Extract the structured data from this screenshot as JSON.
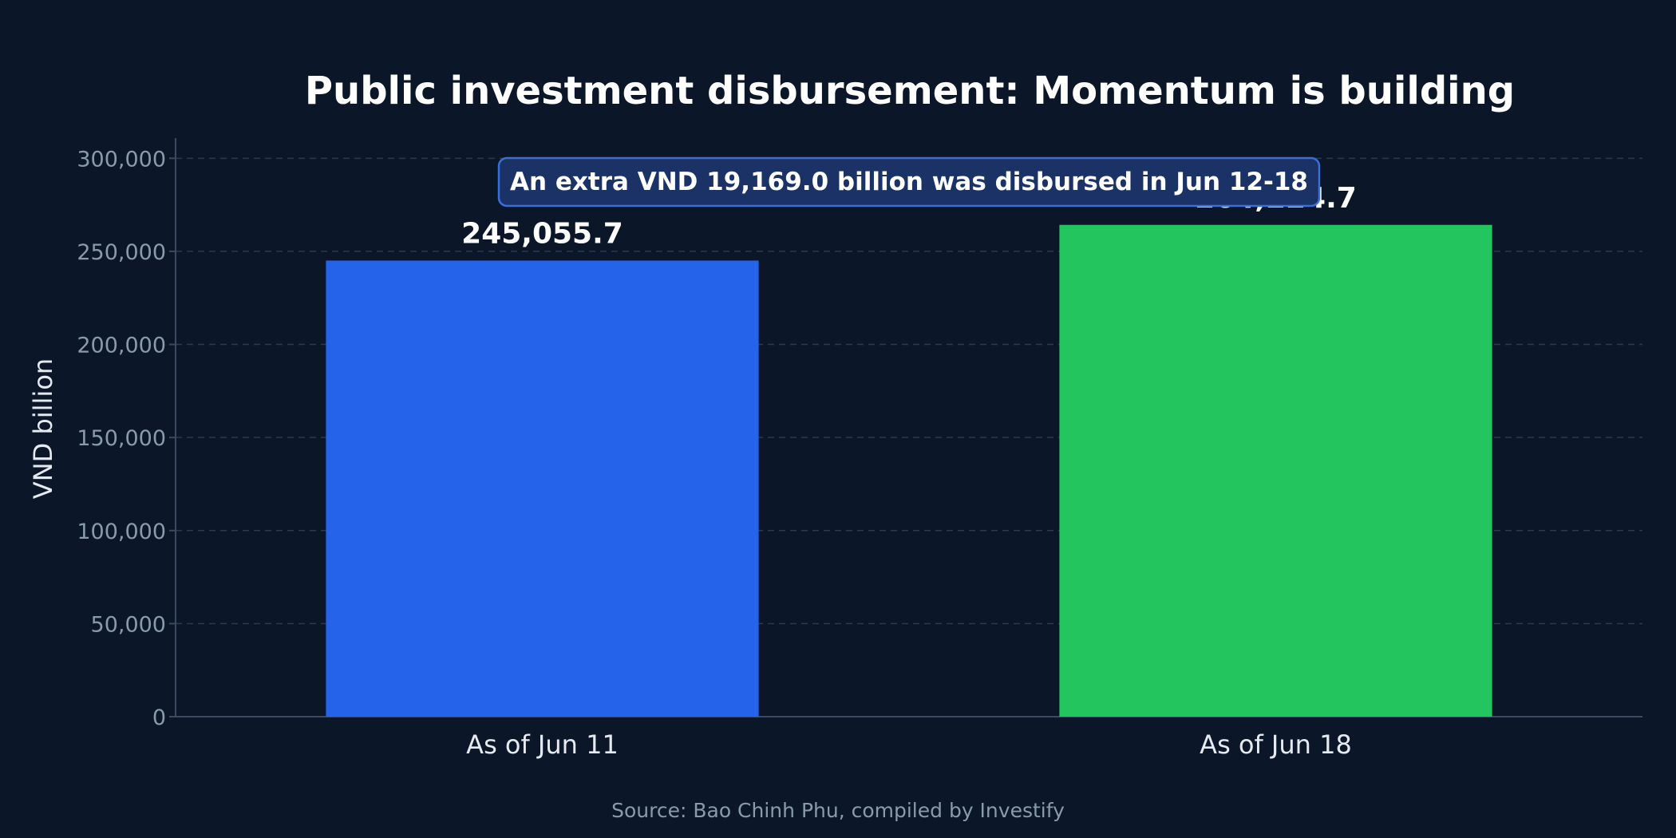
{
  "chart_data": {
    "type": "bar",
    "title": "Public investment disbursement: Momentum is building",
    "xlabel": "",
    "ylabel": "VND billion",
    "categories": [
      "As of Jun 11",
      "As of Jun 18"
    ],
    "values": [
      245055.7,
      264224.7
    ],
    "value_labels": [
      "245,055.7",
      "264,224.7"
    ],
    "bar_colors": [
      "#2563eb",
      "#22c55e"
    ],
    "ylim": [
      0,
      310000
    ],
    "yticks": [
      0,
      50000,
      100000,
      150000,
      200000,
      250000,
      300000
    ],
    "ytick_labels": [
      "0",
      "50,000",
      "100,000",
      "150,000",
      "200,000",
      "250,000",
      "300,000"
    ],
    "grid": true,
    "annotation": "An extra VND 19,169.0 billion was disbursed in Jun 12-18",
    "source": "Source: Bao Chinh Phu, compiled by Investify"
  },
  "colors": {
    "background": "#0b1728",
    "grid": "#2a3a50",
    "axis": "#3b4a60",
    "annotation_fill": "#1a3266",
    "annotation_border": "#3b6fd8"
  }
}
